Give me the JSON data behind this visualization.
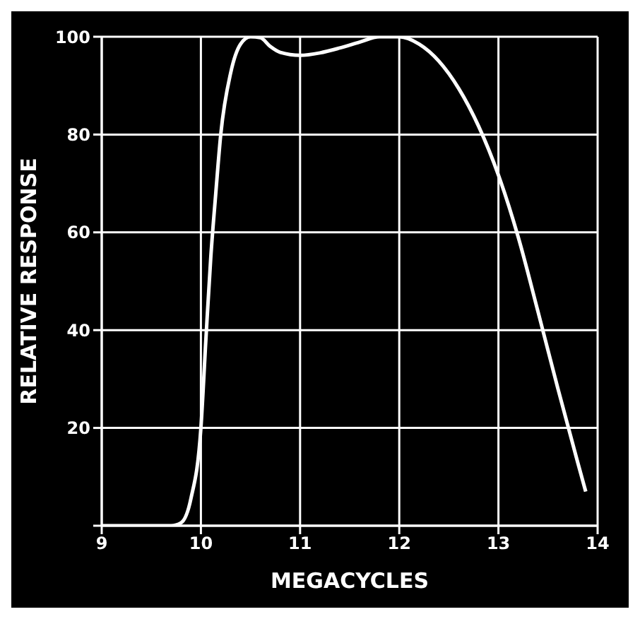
{
  "chart_data": {
    "type": "line",
    "xlabel": "MEGACYCLES",
    "ylabel": "RELATIVE RESPONSE",
    "x": [
      9.0,
      9.7,
      9.8,
      9.9,
      10.0,
      10.05,
      10.1,
      10.15,
      10.2,
      10.3,
      10.4,
      10.5,
      10.6,
      10.7,
      10.8,
      11.0,
      11.2,
      11.4,
      11.6,
      11.8,
      11.9,
      12.0,
      12.2,
      12.4,
      12.6,
      12.8,
      13.0,
      13.2,
      13.4,
      13.6,
      13.8,
      13.88
    ],
    "series": [
      {
        "color": "#ffffff",
        "values": [
          0,
          0,
          0.6,
          5.6,
          20,
          38,
          55,
          68,
          80,
          92.6,
          98.5,
          100,
          99.8,
          98,
          96.8,
          96.2,
          96.7,
          97.7,
          98.9,
          100,
          100,
          100,
          98.5,
          95,
          89.4,
          81.7,
          71.7,
          59,
          43.7,
          28,
          12.9,
          7
        ]
      }
    ],
    "xlim": [
      9,
      14
    ],
    "xticks": [
      9,
      10,
      11,
      12,
      13,
      14
    ],
    "ylim": [
      0,
      100
    ],
    "yticks": [
      {
        "value": 0,
        "label": null
      },
      20,
      40,
      60,
      80,
      100
    ],
    "grid": true,
    "legend": false,
    "marker": "none",
    "line_style": "solid"
  }
}
